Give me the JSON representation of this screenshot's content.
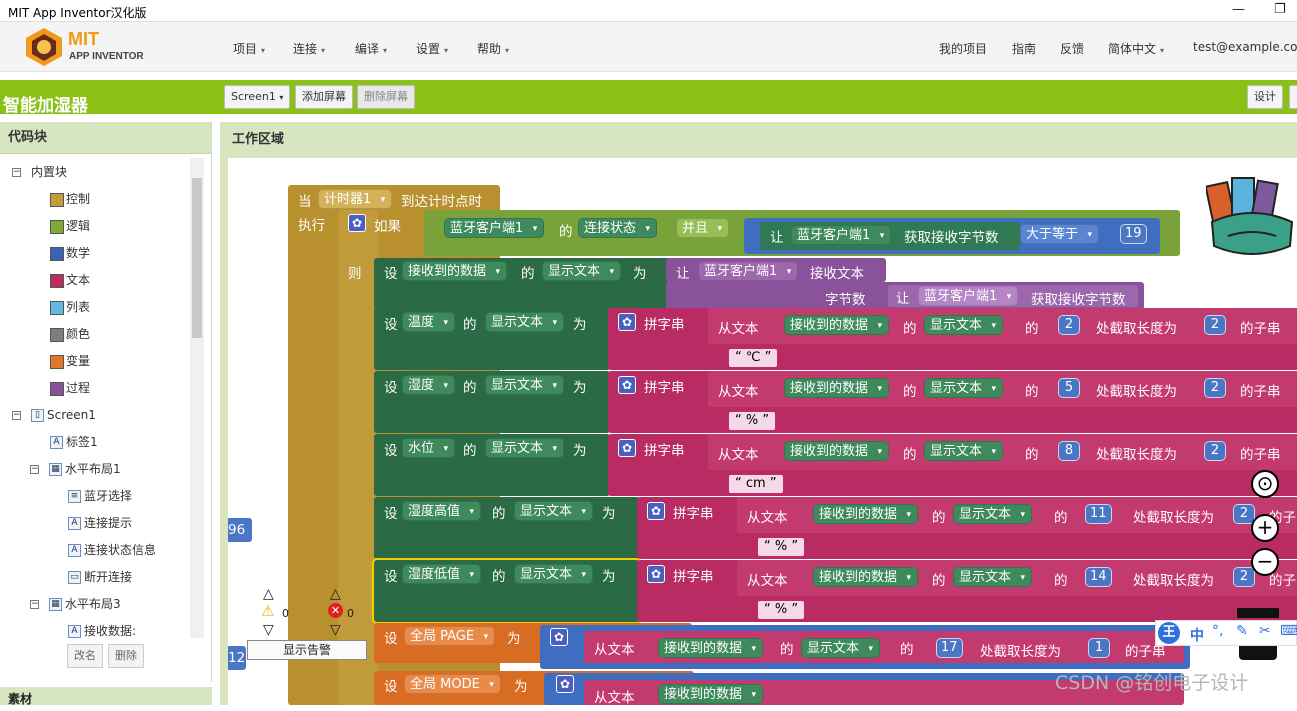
{
  "window": {
    "title": "MIT App Inventor汉化版"
  },
  "logo": {
    "mark": "MIT",
    "sub": "APP INVENTOR"
  },
  "nav": {
    "items": [
      "项目",
      "连接",
      "编译",
      "设置",
      "帮助"
    ],
    "right": [
      "我的项目",
      "指南",
      "反馈",
      "简体中文"
    ],
    "user": "test@example.com"
  },
  "project": {
    "name": "智能加湿器",
    "screen": "Screen1",
    "add_screen": "添加屏幕",
    "remove_screen": "删除屏幕",
    "design": "设计"
  },
  "left": {
    "header": "代码块",
    "tree": [
      {
        "label": "内置块",
        "level": 0,
        "toggle": "−",
        "kind": "folder"
      },
      {
        "label": "控制",
        "level": 1,
        "color": "#c29f39"
      },
      {
        "label": "逻辑",
        "level": 1,
        "color": "#7fa938"
      },
      {
        "label": "数学",
        "level": 1,
        "color": "#3a62b5"
      },
      {
        "label": "文本",
        "level": 1,
        "color": "#b5305e"
      },
      {
        "label": "列表",
        "level": 1,
        "color": "#62b8de"
      },
      {
        "label": "颜色",
        "level": 1,
        "color": "#7d7d7d"
      },
      {
        "label": "变量",
        "level": 1,
        "color": "#e0772a"
      },
      {
        "label": "过程",
        "level": 1,
        "color": "#8a529b"
      },
      {
        "label": "Screen1",
        "level": 0,
        "toggle": "−",
        "kind": "screen"
      },
      {
        "label": "标签1",
        "level": 1,
        "kind": "label"
      },
      {
        "label": "水平布局1",
        "level": 1,
        "toggle": "−",
        "kind": "layout"
      },
      {
        "label": "蓝牙选择",
        "level": 2,
        "kind": "list"
      },
      {
        "label": "连接提示",
        "level": 2,
        "kind": "label"
      },
      {
        "label": "连接状态信息",
        "level": 2,
        "kind": "label"
      },
      {
        "label": "断开连接",
        "level": 2,
        "kind": "button"
      },
      {
        "label": "水平布局3",
        "level": 1,
        "toggle": "−",
        "kind": "layout"
      },
      {
        "label": "接收数据:",
        "level": 2,
        "kind": "label"
      }
    ],
    "rename": "改名",
    "delete": "删除",
    "materials": "素材"
  },
  "work": {
    "header": "工作区域"
  },
  "blocks": {
    "when": "当",
    "timer": "计时器1",
    "timer_event": "到达计时点时",
    "do": "执行",
    "if": "如果",
    "then": "则",
    "bt": "蓝牙客户端1",
    "of": "的",
    "conn": "连接状态",
    "and": "并且",
    "call": "让",
    "bytes_avail": "获取接收字节数",
    "gte": "大于等于",
    "n19": "19",
    "set": "设",
    "recv": "接收到的数据",
    "disp": "显示文本",
    "to": "为",
    "recv_text": "接收文本",
    "byte_count": "字节数",
    "join": "拼字串",
    "from_text": "从文本",
    "start": "处截取长度为",
    "substr": "的子串",
    "rows": [
      {
        "var": "温度",
        "start": "2",
        "len": "2",
        "unit": "℃"
      },
      {
        "var": "湿度",
        "start": "5",
        "len": "2",
        "unit": "%"
      },
      {
        "var": "水位",
        "start": "8",
        "len": "2",
        "unit": "cm"
      },
      {
        "var": "湿度高值",
        "start": "11",
        "len": "2",
        "unit": "%"
      },
      {
        "var": "湿度低值",
        "start": "14",
        "len": "2",
        "unit": "%"
      }
    ],
    "global_page": "全局 PAGE",
    "n17": "17",
    "n1": "1",
    "global_mode": "全局 MODE",
    "side_n96": "96",
    "side_n12": "12"
  },
  "warnings": {
    "warn_count": "0",
    "err_count": "0",
    "show": "显示告警"
  },
  "ime": {
    "lang": "中"
  },
  "watermark": "CSDN @铭创电子设计"
}
